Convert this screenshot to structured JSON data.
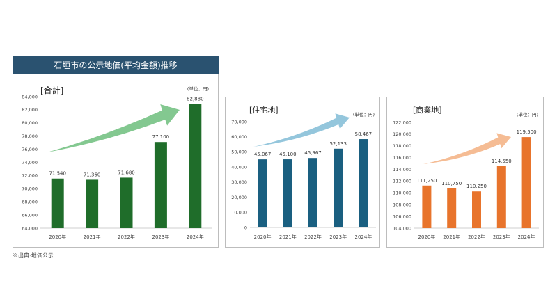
{
  "banner": {
    "title": "石垣市の公示地価(平均金額)推移",
    "bg": "#2a5270"
  },
  "source": "※出典:地価公示",
  "chart_data": [
    {
      "type": "bar",
      "name": "total",
      "title": "[合計]",
      "unit": "(単位：円)",
      "categories": [
        "2020年",
        "2021年",
        "2022年",
        "2023年",
        "2024年"
      ],
      "values": [
        71540,
        71360,
        71680,
        77100,
        82880
      ],
      "value_labels": [
        "71,540",
        "71,360",
        "71,680",
        "77,100",
        "82,880"
      ],
      "ylim": [
        64000,
        84000
      ],
      "yticks": [
        64000,
        66000,
        68000,
        70000,
        72000,
        74000,
        76000,
        78000,
        80000,
        82000,
        84000
      ],
      "ytick_labels": [
        "64,000",
        "66,000",
        "68,000",
        "70,000",
        "72,000",
        "74,000",
        "76,000",
        "78,000",
        "80,000",
        "82,000",
        "84,000"
      ],
      "color": "#1f6d2a",
      "arrow_color": "#7cc58a",
      "grid": false,
      "legend": "none"
    },
    {
      "type": "bar",
      "name": "residential",
      "title": "[住宅地]",
      "unit": "(単位：円)",
      "categories": [
        "2020年",
        "2021年",
        "2022年",
        "2023年",
        "2024年"
      ],
      "values": [
        45067,
        45100,
        45967,
        52133,
        58467
      ],
      "value_labels": [
        "45,067",
        "45,100",
        "45,967",
        "52,133",
        "58,467"
      ],
      "ylim": [
        0,
        70000
      ],
      "yticks": [
        0,
        10000,
        20000,
        30000,
        40000,
        50000,
        60000,
        70000
      ],
      "ytick_labels": [
        "0",
        "10,000",
        "20,000",
        "30,000",
        "40,000",
        "50,000",
        "60,000",
        "70,000"
      ],
      "color": "#1a5f80",
      "arrow_color": "#8ec3da",
      "grid": false,
      "legend": "none"
    },
    {
      "type": "bar",
      "name": "commercial",
      "title": "[商業地]",
      "unit": "(単位：円)",
      "categories": [
        "2020年",
        "2021年",
        "2022年",
        "2023年",
        "2024年"
      ],
      "values": [
        111250,
        110750,
        110250,
        114550,
        119500
      ],
      "value_labels": [
        "111,250",
        "110,750",
        "110,250",
        "114,550",
        "119,500"
      ],
      "ylim": [
        104000,
        122000
      ],
      "yticks": [
        104000,
        106000,
        108000,
        110000,
        112000,
        114000,
        116000,
        118000,
        120000,
        122000
      ],
      "ytick_labels": [
        "104,000",
        "106,000",
        "108,000",
        "110,000",
        "112,000",
        "114,000",
        "116,000",
        "118,000",
        "120,000",
        "122,000"
      ],
      "color": "#e8742c",
      "arrow_color": "#f4b88e",
      "grid": false,
      "legend": "none"
    }
  ]
}
